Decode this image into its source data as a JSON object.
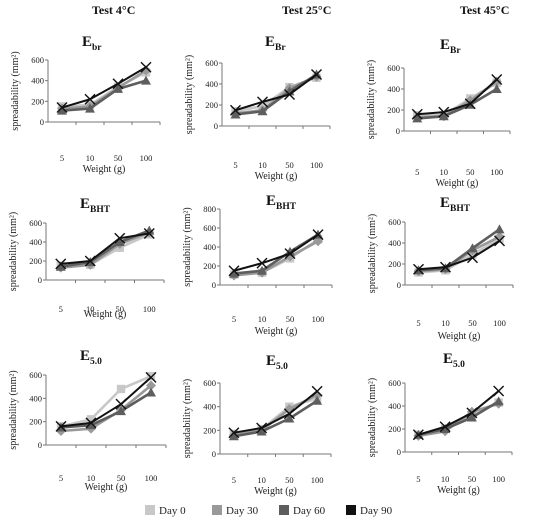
{
  "figure": {
    "column_titles": [
      "Test 4°C",
      "Test 25°C",
      "Test 45°C"
    ],
    "legend": [
      {
        "label": "Day 0",
        "color": "#c8c8c8"
      },
      {
        "label": "Day 30",
        "color": "#999999"
      },
      {
        "label": "Day 60",
        "color": "#5e5e5e"
      },
      {
        "label": "Day 90",
        "color": "#111111"
      }
    ]
  },
  "chart_data": [
    {
      "type": "line",
      "title": "Ebr",
      "title_main": "E",
      "title_sub": "br",
      "column": "Test 4°C",
      "categories": [
        "5",
        "10",
        "50",
        "100"
      ],
      "xlabel": "Weight (g)",
      "ylabel": "spreadability (mm²)",
      "ylim": [
        0,
        600
      ],
      "yticks": [
        0,
        200,
        400,
        600
      ],
      "series": [
        {
          "name": "Day 0",
          "values": [
            150,
            165,
            340,
            480
          ]
        },
        {
          "name": "Day 30",
          "values": [
            130,
            150,
            330,
            500
          ]
        },
        {
          "name": "Day 60",
          "values": [
            110,
            130,
            320,
            400
          ]
        },
        {
          "name": "Day 90",
          "values": [
            140,
            220,
            370,
            530
          ]
        }
      ]
    },
    {
      "type": "line",
      "title": "EBr",
      "title_main": "E",
      "title_sub": "Br",
      "column": "Test 25°C",
      "categories": [
        "5",
        "10",
        "50",
        "100"
      ],
      "xlabel": "Weight (g)",
      "ylabel": "spreadability (mm²)",
      "ylim": [
        0,
        600
      ],
      "yticks": [
        0,
        200,
        400,
        600
      ],
      "series": [
        {
          "name": "Day 0",
          "values": [
            140,
            190,
            370,
            460
          ]
        },
        {
          "name": "Day 30",
          "values": [
            120,
            150,
            360,
            470
          ]
        },
        {
          "name": "Day 60",
          "values": [
            110,
            140,
            330,
            490
          ]
        },
        {
          "name": "Day 90",
          "values": [
            150,
            230,
            300,
            490
          ]
        }
      ]
    },
    {
      "type": "line",
      "title": "EBr",
      "title_main": "E",
      "title_sub": "Br",
      "column": "Test 45°C",
      "categories": [
        "5",
        "10",
        "50",
        "100"
      ],
      "xlabel": "Weight (g)",
      "ylabel": "spreadability (mm²)",
      "ylim": [
        0,
        600
      ],
      "yticks": [
        0,
        200,
        400,
        600
      ],
      "series": [
        {
          "name": "Day 0",
          "values": [
            150,
            150,
            310,
            460
          ]
        },
        {
          "name": "Day 30",
          "values": [
            130,
            140,
            290,
            470
          ]
        },
        {
          "name": "Day 60",
          "values": [
            120,
            140,
            250,
            400
          ]
        },
        {
          "name": "Day 90",
          "values": [
            160,
            180,
            260,
            490
          ]
        }
      ]
    },
    {
      "type": "line",
      "title": "EBHT",
      "title_main": "E",
      "title_sub": "BHT",
      "column": "Test 4°C",
      "categories": [
        "5",
        "10",
        "50",
        "100"
      ],
      "xlabel": "Weight (g)",
      "ylabel": "spreadability (mm²)",
      "ylim": [
        0,
        600
      ],
      "yticks": [
        0,
        200,
        400,
        600
      ],
      "series": [
        {
          "name": "Day 0",
          "values": [
            150,
            160,
            340,
            480
          ]
        },
        {
          "name": "Day 30",
          "values": [
            130,
            160,
            380,
            500
          ]
        },
        {
          "name": "Day 60",
          "values": [
            140,
            190,
            400,
            520
          ]
        },
        {
          "name": "Day 90",
          "values": [
            170,
            200,
            440,
            490
          ]
        }
      ]
    },
    {
      "type": "line",
      "title": "EBHT",
      "title_main": "E",
      "title_sub": "BHT",
      "column": "Test 25°C",
      "categories": [
        "5",
        "10",
        "50",
        "100"
      ],
      "xlabel": "Weight (g)",
      "ylabel": "spreadability (mm²)",
      "ylim": [
        0,
        800
      ],
      "yticks": [
        0,
        200,
        400,
        600,
        800
      ],
      "series": [
        {
          "name": "Day 0",
          "values": [
            110,
            130,
            280,
            480
          ]
        },
        {
          "name": "Day 30",
          "values": [
            100,
            130,
            300,
            460
          ]
        },
        {
          "name": "Day 60",
          "values": [
            120,
            150,
            350,
            530
          ]
        },
        {
          "name": "Day 90",
          "values": [
            150,
            230,
            330,
            530
          ]
        }
      ]
    },
    {
      "type": "line",
      "title": "EBHT",
      "title_main": "E",
      "title_sub": "BHT",
      "column": "Test 45°C",
      "categories": [
        "5",
        "10",
        "50",
        "100"
      ],
      "xlabel": "Weight (g)",
      "ylabel": "spreadability (mm²)",
      "ylim": [
        0,
        600
      ],
      "yticks": [
        0,
        200,
        400,
        600
      ],
      "series": [
        {
          "name": "Day 0",
          "values": [
            120,
            140,
            290,
            440
          ]
        },
        {
          "name": "Day 30",
          "values": [
            130,
            150,
            330,
            460
          ]
        },
        {
          "name": "Day 60",
          "values": [
            140,
            160,
            350,
            530
          ]
        },
        {
          "name": "Day 90",
          "values": [
            150,
            170,
            260,
            420
          ]
        }
      ]
    },
    {
      "type": "line",
      "title": "E5.0",
      "title_main": "E",
      "title_sub": "5.0",
      "column": "Test 4°C",
      "categories": [
        "5",
        "10",
        "50",
        "100"
      ],
      "xlabel": "Weight (g)",
      "ylabel": "spreadability (mm²)",
      "ylim": [
        0,
        600
      ],
      "yticks": [
        0,
        200,
        400,
        600
      ],
      "series": [
        {
          "name": "Day 0",
          "values": [
            160,
            220,
            480,
            590
          ]
        },
        {
          "name": "Day 30",
          "values": [
            120,
            140,
            300,
            510
          ]
        },
        {
          "name": "Day 60",
          "values": [
            150,
            170,
            290,
            450
          ]
        },
        {
          "name": "Day 90",
          "values": [
            160,
            190,
            350,
            580
          ]
        }
      ]
    },
    {
      "type": "line",
      "title": "E5.0",
      "title_main": "E",
      "title_sub": "5.0",
      "column": "Test 25°C",
      "categories": [
        "5",
        "10",
        "50",
        "100"
      ],
      "xlabel": "Weight (g)",
      "ylabel": "spreadability (mm²)",
      "ylim": [
        0,
        600
      ],
      "yticks": [
        0,
        200,
        400,
        600
      ],
      "series": [
        {
          "name": "Day 0",
          "values": [
            170,
            210,
            400,
            470
          ]
        },
        {
          "name": "Day 30",
          "values": [
            160,
            200,
            380,
            500
          ]
        },
        {
          "name": "Day 60",
          "values": [
            150,
            190,
            300,
            450
          ]
        },
        {
          "name": "Day 90",
          "values": [
            180,
            220,
            340,
            530
          ]
        }
      ]
    },
    {
      "type": "line",
      "title": "E5.0",
      "title_main": "E",
      "title_sub": "5.0",
      "column": "Test 45°C",
      "categories": [
        "5",
        "10",
        "50",
        "100"
      ],
      "xlabel": "Weight (g)",
      "ylabel": "spreadability (mm²)",
      "ylim": [
        0,
        600
      ],
      "yticks": [
        0,
        200,
        400,
        600
      ],
      "series": [
        {
          "name": "Day 0",
          "values": [
            150,
            200,
            320,
            430
          ]
        },
        {
          "name": "Day 30",
          "values": [
            140,
            180,
            350,
            420
          ]
        },
        {
          "name": "Day 60",
          "values": [
            150,
            200,
            300,
            440
          ]
        },
        {
          "name": "Day 90",
          "values": [
            150,
            220,
            340,
            530
          ]
        }
      ]
    }
  ]
}
